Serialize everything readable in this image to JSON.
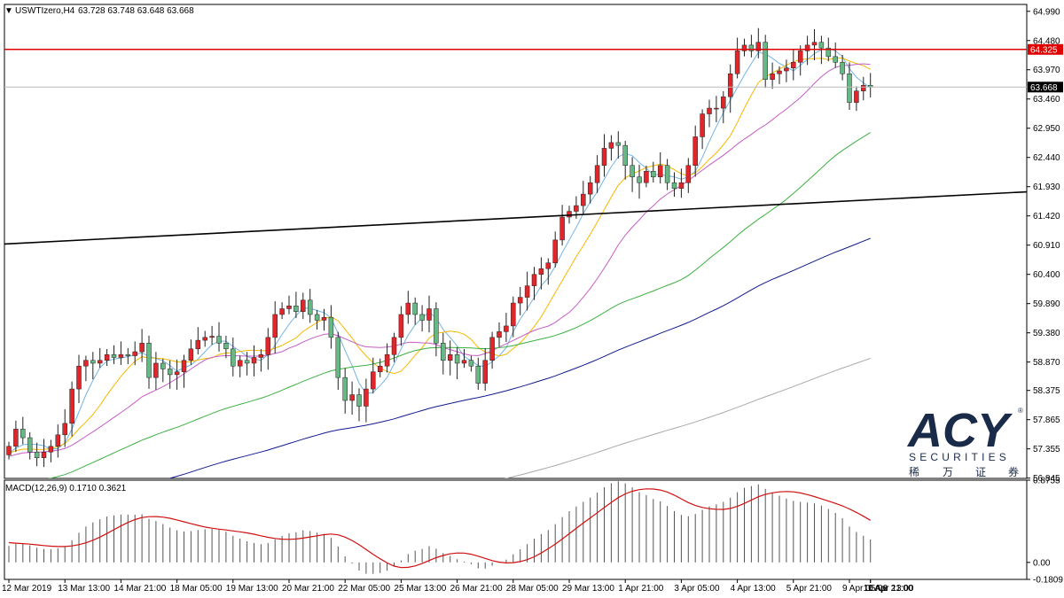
{
  "header": {
    "symbol": "USWTIzero,H4",
    "ohlc": "63.728 63.748 63.648 63.668",
    "collapse_glyph": "▼"
  },
  "watermark": {
    "brand": "ACY",
    "registered": "®",
    "securities": "SECURITIES",
    "chinese": [
      "稀",
      "万",
      "证",
      "券"
    ]
  },
  "chart_data": [
    {
      "type": "candlestick",
      "name": "price-panel",
      "ylim": [
        56.84,
        65.11
      ],
      "y_ticks": [
        "64.990",
        "64.480",
        "63.970",
        "63.460",
        "62.950",
        "62.440",
        "61.930",
        "61.420",
        "60.910",
        "60.400",
        "59.890",
        "59.380",
        "58.870",
        "58.375",
        "57.865",
        "57.355",
        "56.845"
      ],
      "price_labels": [
        {
          "value": 64.325,
          "label": "64.325",
          "color": "#e00000"
        },
        {
          "value": 63.668,
          "label": "63.668",
          "color": "#000000"
        }
      ],
      "x_labels": [
        "12 Mar 2019",
        "13 Mar 13:00",
        "14 Mar 21:00",
        "18 Mar 05:00",
        "19 Mar 13:00",
        "20 Mar 21:00",
        "22 Mar 05:00",
        "25 Mar 13:00",
        "26 Mar 21:00",
        "28 Mar 05:00",
        "29 Mar 13:00",
        "1 Apr 21:00",
        "3 Apr 05:00",
        "4 Apr 13:00",
        "5 Apr 21:00",
        "9 Apr 05:00",
        "10 Apr 13:00",
        "11 Apr 21:00"
      ],
      "x_label_every": 8,
      "colors": {
        "bull": "#e0262b",
        "bear": "#66b884",
        "wick": "#222222"
      },
      "closes": [
        57.4,
        57.7,
        57.55,
        57.3,
        57.2,
        57.3,
        57.4,
        57.6,
        57.8,
        58.4,
        58.8,
        58.9,
        58.85,
        58.9,
        59.0,
        58.95,
        59.0,
        58.98,
        59.05,
        59.2,
        58.6,
        58.85,
        58.75,
        58.65,
        58.7,
        58.9,
        59.1,
        59.25,
        59.3,
        59.32,
        59.2,
        59.1,
        58.8,
        58.9,
        58.85,
        58.95,
        59.0,
        59.3,
        59.7,
        59.8,
        59.85,
        59.75,
        59.95,
        59.7,
        59.6,
        59.65,
        59.3,
        58.6,
        58.2,
        58.3,
        58.1,
        58.4,
        58.7,
        58.8,
        59.0,
        59.3,
        59.7,
        59.9,
        59.7,
        59.6,
        59.8,
        59.2,
        58.9,
        59.0,
        58.85,
        58.9,
        58.8,
        58.5,
        58.9,
        59.3,
        59.4,
        59.5,
        59.9,
        60.0,
        60.2,
        60.4,
        60.5,
        60.6,
        61.0,
        61.4,
        61.5,
        61.6,
        61.8,
        62.0,
        62.3,
        62.6,
        62.7,
        62.65,
        62.3,
        62.1,
        62.0,
        62.2,
        62.1,
        62.3,
        62.0,
        61.9,
        62.0,
        62.3,
        62.8,
        63.2,
        63.3,
        63.3,
        63.5,
        63.9,
        64.3,
        64.4,
        64.3,
        64.45,
        63.8,
        63.9,
        63.95,
        64.0,
        64.1,
        64.3,
        64.4,
        64.45,
        64.35,
        64.2,
        64.1,
        63.9,
        63.4,
        63.6,
        63.7,
        63.668
      ],
      "overlays": [
        {
          "name": "ma-5",
          "period": 5,
          "color": "#74b4e4"
        },
        {
          "name": "ma-10",
          "period": 10,
          "color": "#f5b800"
        },
        {
          "name": "ma-20",
          "period": 20,
          "color": "#c45ec4"
        },
        {
          "name": "ma-50",
          "period": 50,
          "color": "#3cb040"
        },
        {
          "name": "ma-100",
          "period": 100,
          "color": "#101a8c"
        },
        {
          "name": "ma-200",
          "period": 200,
          "color": "#a8a8a8"
        }
      ],
      "horizontal_line": {
        "value": 64.325,
        "color": "#e00000"
      },
      "trendline": {
        "from_value": 60.93,
        "to_value": 61.84,
        "color": "#000000"
      }
    },
    {
      "type": "bar",
      "name": "macd-panel",
      "title": "MACD(12,26,9) 0.1710 0.3621",
      "ylim": [
        -0.1809,
        0.8755
      ],
      "y_ticks": [
        "0.8755",
        "0.00",
        "-0.1809"
      ],
      "histogram_color": "#555555",
      "signal_color": "#d01010"
    }
  ]
}
